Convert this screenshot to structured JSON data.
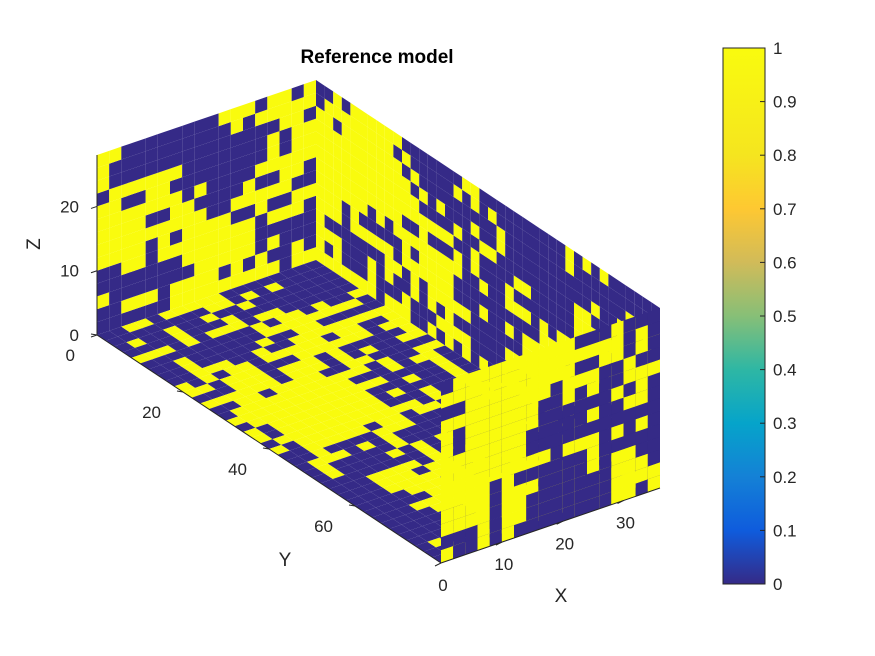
{
  "chart_data": {
    "type": "heatmap",
    "title": "Reference model",
    "xlabel": "X",
    "ylabel": "Y",
    "zlabel": "Z",
    "x_ticks": [
      "0",
      "10",
      "20",
      "30"
    ],
    "y_ticks": [
      "0",
      "20",
      "40",
      "60"
    ],
    "z_ticks": [
      "0",
      "10",
      "20"
    ],
    "xlim": [
      0,
      36
    ],
    "ylim": [
      0,
      80
    ],
    "zlim": [
      0,
      28
    ],
    "colormap": "parula",
    "color_low": "#352a87",
    "color_high": "#f9fb0e",
    "colorbar_ticks": [
      "0",
      "0.1",
      "0.2",
      "0.3",
      "0.4",
      "0.5",
      "0.6",
      "0.7",
      "0.8",
      "0.9",
      "1"
    ],
    "clim": [
      0,
      1
    ],
    "values": "binary facies field, 0 or 1 in every cell"
  }
}
